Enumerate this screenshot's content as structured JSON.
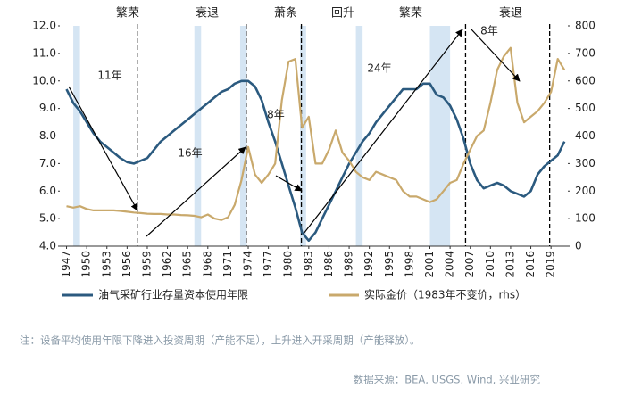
{
  "chart_data": {
    "type": "line",
    "x": [
      1947,
      1948,
      1949,
      1950,
      1951,
      1952,
      1953,
      1954,
      1955,
      1956,
      1957,
      1958,
      1959,
      1960,
      1961,
      1962,
      1963,
      1964,
      1965,
      1966,
      1967,
      1968,
      1969,
      1970,
      1971,
      1972,
      1973,
      1974,
      1975,
      1976,
      1977,
      1978,
      1979,
      1980,
      1981,
      1982,
      1983,
      1984,
      1985,
      1986,
      1987,
      1988,
      1989,
      1990,
      1991,
      1992,
      1993,
      1994,
      1995,
      1996,
      1997,
      1998,
      1999,
      2000,
      2001,
      2002,
      2003,
      2004,
      2005,
      2006,
      2007,
      2008,
      2009,
      2010,
      2011,
      2012,
      2013,
      2014,
      2015,
      2016,
      2017,
      2018,
      2019,
      2020,
      2021
    ],
    "series": [
      {
        "name": "油气采矿行业存量资本使用年限",
        "color": "#2b5a7f",
        "values": [
          9.7,
          9.2,
          8.9,
          8.5,
          8.1,
          7.8,
          7.6,
          7.4,
          7.2,
          7.05,
          7.0,
          7.1,
          7.2,
          7.5,
          7.8,
          8.0,
          8.2,
          8.4,
          8.6,
          8.8,
          9.0,
          9.2,
          9.4,
          9.6,
          9.7,
          9.9,
          10.0,
          10.0,
          9.8,
          9.3,
          8.5,
          7.8,
          7.0,
          6.2,
          5.4,
          4.5,
          4.2,
          4.5,
          5.0,
          5.5,
          6.0,
          6.5,
          7.0,
          7.4,
          7.8,
          8.1,
          8.5,
          8.8,
          9.1,
          9.4,
          9.7,
          9.7,
          9.7,
          9.9,
          9.9,
          9.5,
          9.4,
          9.1,
          8.6,
          7.9,
          7.0,
          6.4,
          6.1,
          6.2,
          6.3,
          6.2,
          6.0,
          5.9,
          5.8,
          6.0,
          6.6,
          6.9,
          7.1,
          7.3,
          7.8
        ]
      },
      {
        "name": "实际金价（1983年不变价，rhs）",
        "color": "#c9a96c",
        "axis": "y2",
        "values": [
          145,
          140,
          145,
          135,
          130,
          130,
          130,
          130,
          128,
          125,
          122,
          120,
          118,
          117,
          117,
          115,
          115,
          113,
          112,
          110,
          105,
          115,
          100,
          95,
          105,
          150,
          240,
          360,
          260,
          230,
          260,
          300,
          530,
          670,
          680,
          430,
          470,
          300,
          300,
          350,
          420,
          340,
          310,
          270,
          250,
          240,
          270,
          260,
          250,
          240,
          200,
          180,
          180,
          170,
          160,
          170,
          200,
          230,
          240,
          300,
          350,
          400,
          420,
          520,
          640,
          690,
          720,
          520,
          450,
          470,
          490,
          520,
          560,
          680,
          640
        ]
      }
    ],
    "xlim": [
      1946,
      2021.5
    ],
    "xticks": [
      1947,
      1950,
      1953,
      1956,
      1959,
      1962,
      1965,
      1968,
      1971,
      1974,
      1977,
      1980,
      1983,
      1986,
      1989,
      1992,
      1995,
      1998,
      2001,
      2004,
      2007,
      2010,
      2013,
      2016,
      2019
    ],
    "ylim": [
      4,
      12
    ],
    "yticks": [
      {
        "value": 4,
        "label": "4.0"
      },
      {
        "value": 5,
        "label": "5.0"
      },
      {
        "value": 6,
        "label": "6.0"
      },
      {
        "value": 7,
        "label": "7.0"
      },
      {
        "value": 8,
        "label": "8.0"
      },
      {
        "value": 9,
        "label": "9.0"
      },
      {
        "value": 10,
        "label": "10.0"
      },
      {
        "value": 11,
        "label": "11.0"
      },
      {
        "value": 12,
        "label": "12.0"
      }
    ],
    "y2lim": [
      0,
      800
    ],
    "y2ticks": [
      0,
      100,
      200,
      300,
      400,
      500,
      600,
      700,
      800
    ],
    "shaded_ranges": [
      [
        1948,
        1949
      ],
      [
        1966,
        1967
      ],
      [
        1972.8,
        1973.8
      ],
      [
        1981.7,
        1982.6
      ],
      [
        1990,
        1991
      ],
      [
        2001,
        2004
      ]
    ],
    "vlines": [
      1957.5,
      1973.7,
      1981.9,
      2006.3,
      2018.8
    ],
    "phases": [
      "繁荣",
      "衰退",
      "萧条",
      "回升",
      "繁荣",
      "衰退"
    ],
    "arrow_labels": [
      "11年",
      "16年",
      "8年",
      "24年",
      "8年"
    ],
    "legend": "bottom",
    "note": "注：设备平均使用年限下降进入投资周期（产能不足），上升进入开采周期（产能释放）。",
    "source": "数据来源：BEA, USGS, Wind, 兴业研究"
  }
}
